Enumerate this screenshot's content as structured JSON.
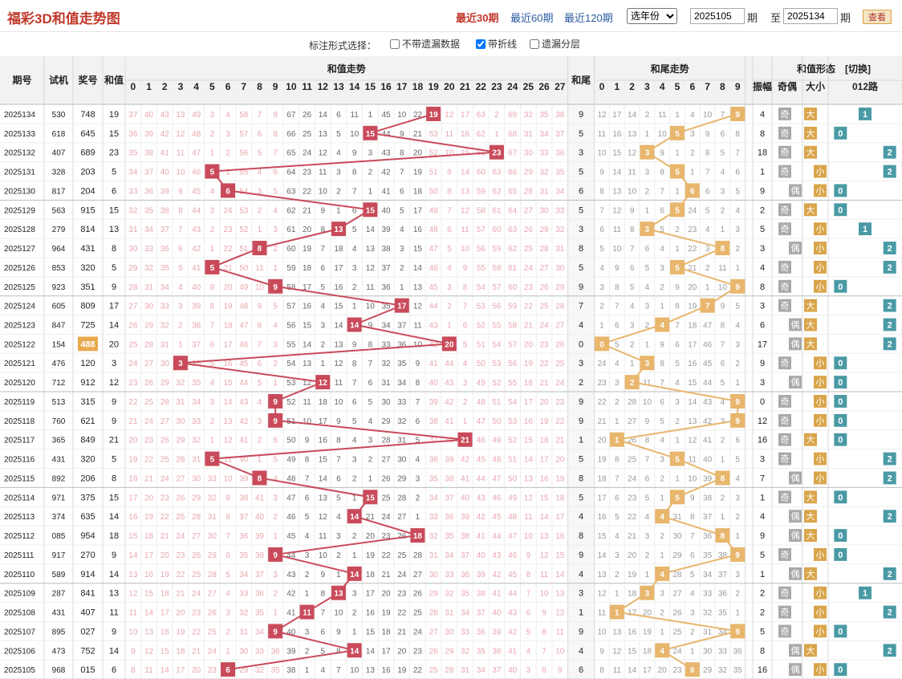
{
  "page": {
    "title": "福彩3D和值走势图"
  },
  "ranges": [
    {
      "label": "最近30期",
      "active": true
    },
    {
      "label": "最近60期",
      "active": false
    },
    {
      "label": "最近120期",
      "active": false
    }
  ],
  "year_select": "选年份",
  "period_from": "2025105",
  "period_to": "2025134",
  "label_qi": "期",
  "label_zhi": "至",
  "query_button": "查看",
  "options": {
    "label": "标注形式选择：",
    "items": [
      {
        "label": "不带遗漏数据",
        "checked": false
      },
      {
        "label": "带折线",
        "checked": true
      },
      {
        "label": "遗漏分层",
        "checked": false
      }
    ]
  },
  "headers": {
    "period": "期号",
    "trial": "试机",
    "prize": "奖号",
    "sum": "和值",
    "sum_trend": "和值走势",
    "tail": "和尾",
    "tail_trend": "和尾走势",
    "shape": "和值形态",
    "toggle": "[切换]",
    "amp": "振幅",
    "parity": "奇偶",
    "size": "大小",
    "road": "012路"
  },
  "colors": {
    "sum_mark": "#c94a5a",
    "tail_mark": "#e8b66c",
    "odd_mark": "#a9a9a9",
    "big_mark": "#d9a54a",
    "small_mark": "#d9a54a",
    "road_mark": "#4a9aa5",
    "miss_sum": "#e8a7ae",
    "miss_tail": "#999999",
    "header_bg": "#f2f2f2",
    "highlight_prize": "#e8a94d"
  },
  "labels": {
    "odd": "奇",
    "even": "偶",
    "big": "大",
    "small": "小"
  },
  "chart_data": {
    "type": "table",
    "title": "福彩3D和值走势图",
    "columns": [
      "期号",
      "试机",
      "奖号",
      "和值",
      "和尾",
      "振幅"
    ],
    "rows": [
      {
        "period": "2025134",
        "trial": "530",
        "prize": "748",
        "sum": 19,
        "tail": 9,
        "amp": 4
      },
      {
        "period": "2025133",
        "trial": "618",
        "prize": "645",
        "sum": 15,
        "tail": 5,
        "amp": 8
      },
      {
        "period": "2025132",
        "trial": "407",
        "prize": "689",
        "sum": 23,
        "tail": 3,
        "amp": 18
      },
      {
        "period": "2025131",
        "trial": "328",
        "prize": "203",
        "sum": 5,
        "tail": 5,
        "amp": 1
      },
      {
        "period": "2025130",
        "trial": "817",
        "prize": "204",
        "sum": 6,
        "tail": 6,
        "amp": 9
      },
      {
        "period": "2025129",
        "trial": "563",
        "prize": "915",
        "sum": 15,
        "tail": 5,
        "amp": 2
      },
      {
        "period": "2025128",
        "trial": "279",
        "prize": "814",
        "sum": 13,
        "tail": 3,
        "amp": 5
      },
      {
        "period": "2025127",
        "trial": "964",
        "prize": "431",
        "sum": 8,
        "tail": 8,
        "amp": 3
      },
      {
        "period": "2025126",
        "trial": "853",
        "prize": "320",
        "sum": 5,
        "tail": 5,
        "amp": 4
      },
      {
        "period": "2025125",
        "trial": "923",
        "prize": "351",
        "sum": 9,
        "tail": 9,
        "amp": 8
      },
      {
        "period": "2025124",
        "trial": "605",
        "prize": "809",
        "sum": 17,
        "tail": 7,
        "amp": 3
      },
      {
        "period": "2025123",
        "trial": "847",
        "prize": "725",
        "sum": 14,
        "tail": 4,
        "amp": 6
      },
      {
        "period": "2025122",
        "trial": "154",
        "prize": "488",
        "sum": 20,
        "tail": 0,
        "amp": 17,
        "highlight": true
      },
      {
        "period": "2025121",
        "trial": "476",
        "prize": "120",
        "sum": 3,
        "tail": 3,
        "amp": 9
      },
      {
        "period": "2025120",
        "trial": "712",
        "prize": "912",
        "sum": 12,
        "tail": 2,
        "amp": 3
      },
      {
        "period": "2025119",
        "trial": "513",
        "prize": "315",
        "sum": 9,
        "tail": 9,
        "amp": 0
      },
      {
        "period": "2025118",
        "trial": "760",
        "prize": "621",
        "sum": 9,
        "tail": 9,
        "amp": 12
      },
      {
        "period": "2025117",
        "trial": "365",
        "prize": "849",
        "sum": 21,
        "tail": 1,
        "amp": 16
      },
      {
        "period": "2025116",
        "trial": "431",
        "prize": "320",
        "sum": 5,
        "tail": 5,
        "amp": 3
      },
      {
        "period": "2025115",
        "trial": "892",
        "prize": "206",
        "sum": 8,
        "tail": 8,
        "amp": 7
      },
      {
        "period": "2025114",
        "trial": "971",
        "prize": "375",
        "sum": 15,
        "tail": 5,
        "amp": 1
      },
      {
        "period": "2025113",
        "trial": "374",
        "prize": "635",
        "sum": 14,
        "tail": 4,
        "amp": 4
      },
      {
        "period": "2025112",
        "trial": "085",
        "prize": "954",
        "sum": 18,
        "tail": 8,
        "amp": 9
      },
      {
        "period": "2025111",
        "trial": "917",
        "prize": "270",
        "sum": 9,
        "tail": 9,
        "amp": 5
      },
      {
        "period": "2025110",
        "trial": "589",
        "prize": "914",
        "sum": 14,
        "tail": 4,
        "amp": 1
      },
      {
        "period": "2025109",
        "trial": "287",
        "prize": "841",
        "sum": 13,
        "tail": 3,
        "amp": 2
      },
      {
        "period": "2025108",
        "trial": "431",
        "prize": "407",
        "sum": 11,
        "tail": 1,
        "amp": 2
      },
      {
        "period": "2025107",
        "trial": "895",
        "prize": "027",
        "sum": 9,
        "tail": 9,
        "amp": 5
      },
      {
        "period": "2025106",
        "trial": "473",
        "prize": "752",
        "sum": 14,
        "tail": 4,
        "amp": 8
      },
      {
        "period": "2025105",
        "trial": "968",
        "prize": "015",
        "sum": 6,
        "tail": 6,
        "amp": 16
      }
    ],
    "sum_range": [
      0,
      27
    ],
    "tail_range": [
      0,
      9
    ]
  }
}
